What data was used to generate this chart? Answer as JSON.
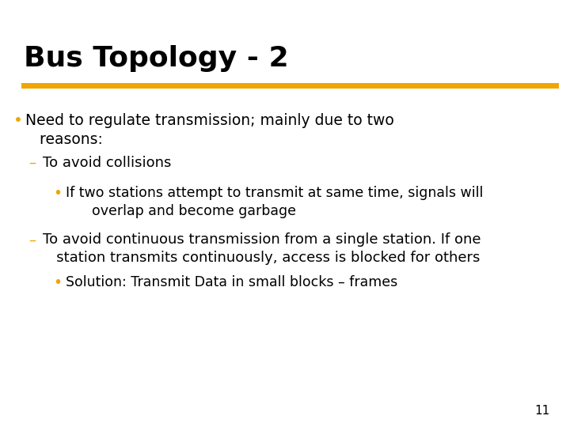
{
  "title": "Bus Topology - 2",
  "title_color": "#000000",
  "title_fontsize": 26,
  "title_font_weight": "bold",
  "separator_color": "#F0A500",
  "separator_lw": 5,
  "background_color": "#FFFFFF",
  "bullet_color": "#F0A500",
  "dash_color": "#F0A500",
  "text_color": "#000000",
  "page_number": "11",
  "content": [
    {
      "level": 0,
      "type": "bullet",
      "marker": "•",
      "text": "Need to regulate transmission; mainly due to two\n   reasons:",
      "fx": 0.045,
      "fy": 0.735,
      "fontsize": 13.5,
      "font_family": "DejaVu Sans"
    },
    {
      "level": 1,
      "type": "dash",
      "marker": "–",
      "text": "To avoid collisions",
      "fx": 0.075,
      "fy": 0.635,
      "fontsize": 13,
      "font_family": "DejaVu Sans"
    },
    {
      "level": 2,
      "type": "bullet",
      "marker": "•",
      "text": "If two stations attempt to transmit at same time, signals will\n      overlap and become garbage",
      "fx": 0.115,
      "fy": 0.565,
      "fontsize": 12.5,
      "font_family": "DejaVu Sans"
    },
    {
      "level": 1,
      "type": "dash",
      "marker": "–",
      "text": "To avoid continuous transmission from a single station. If one\n   station transmits continuously, access is blocked for others",
      "fx": 0.075,
      "fy": 0.455,
      "fontsize": 13,
      "font_family": "DejaVu Sans"
    },
    {
      "level": 2,
      "type": "bullet",
      "marker": "•",
      "text": "Solution: Transmit Data in small blocks – frames",
      "fx": 0.115,
      "fy": 0.355,
      "fontsize": 12.5,
      "font_family": "DejaVu Sans"
    }
  ]
}
